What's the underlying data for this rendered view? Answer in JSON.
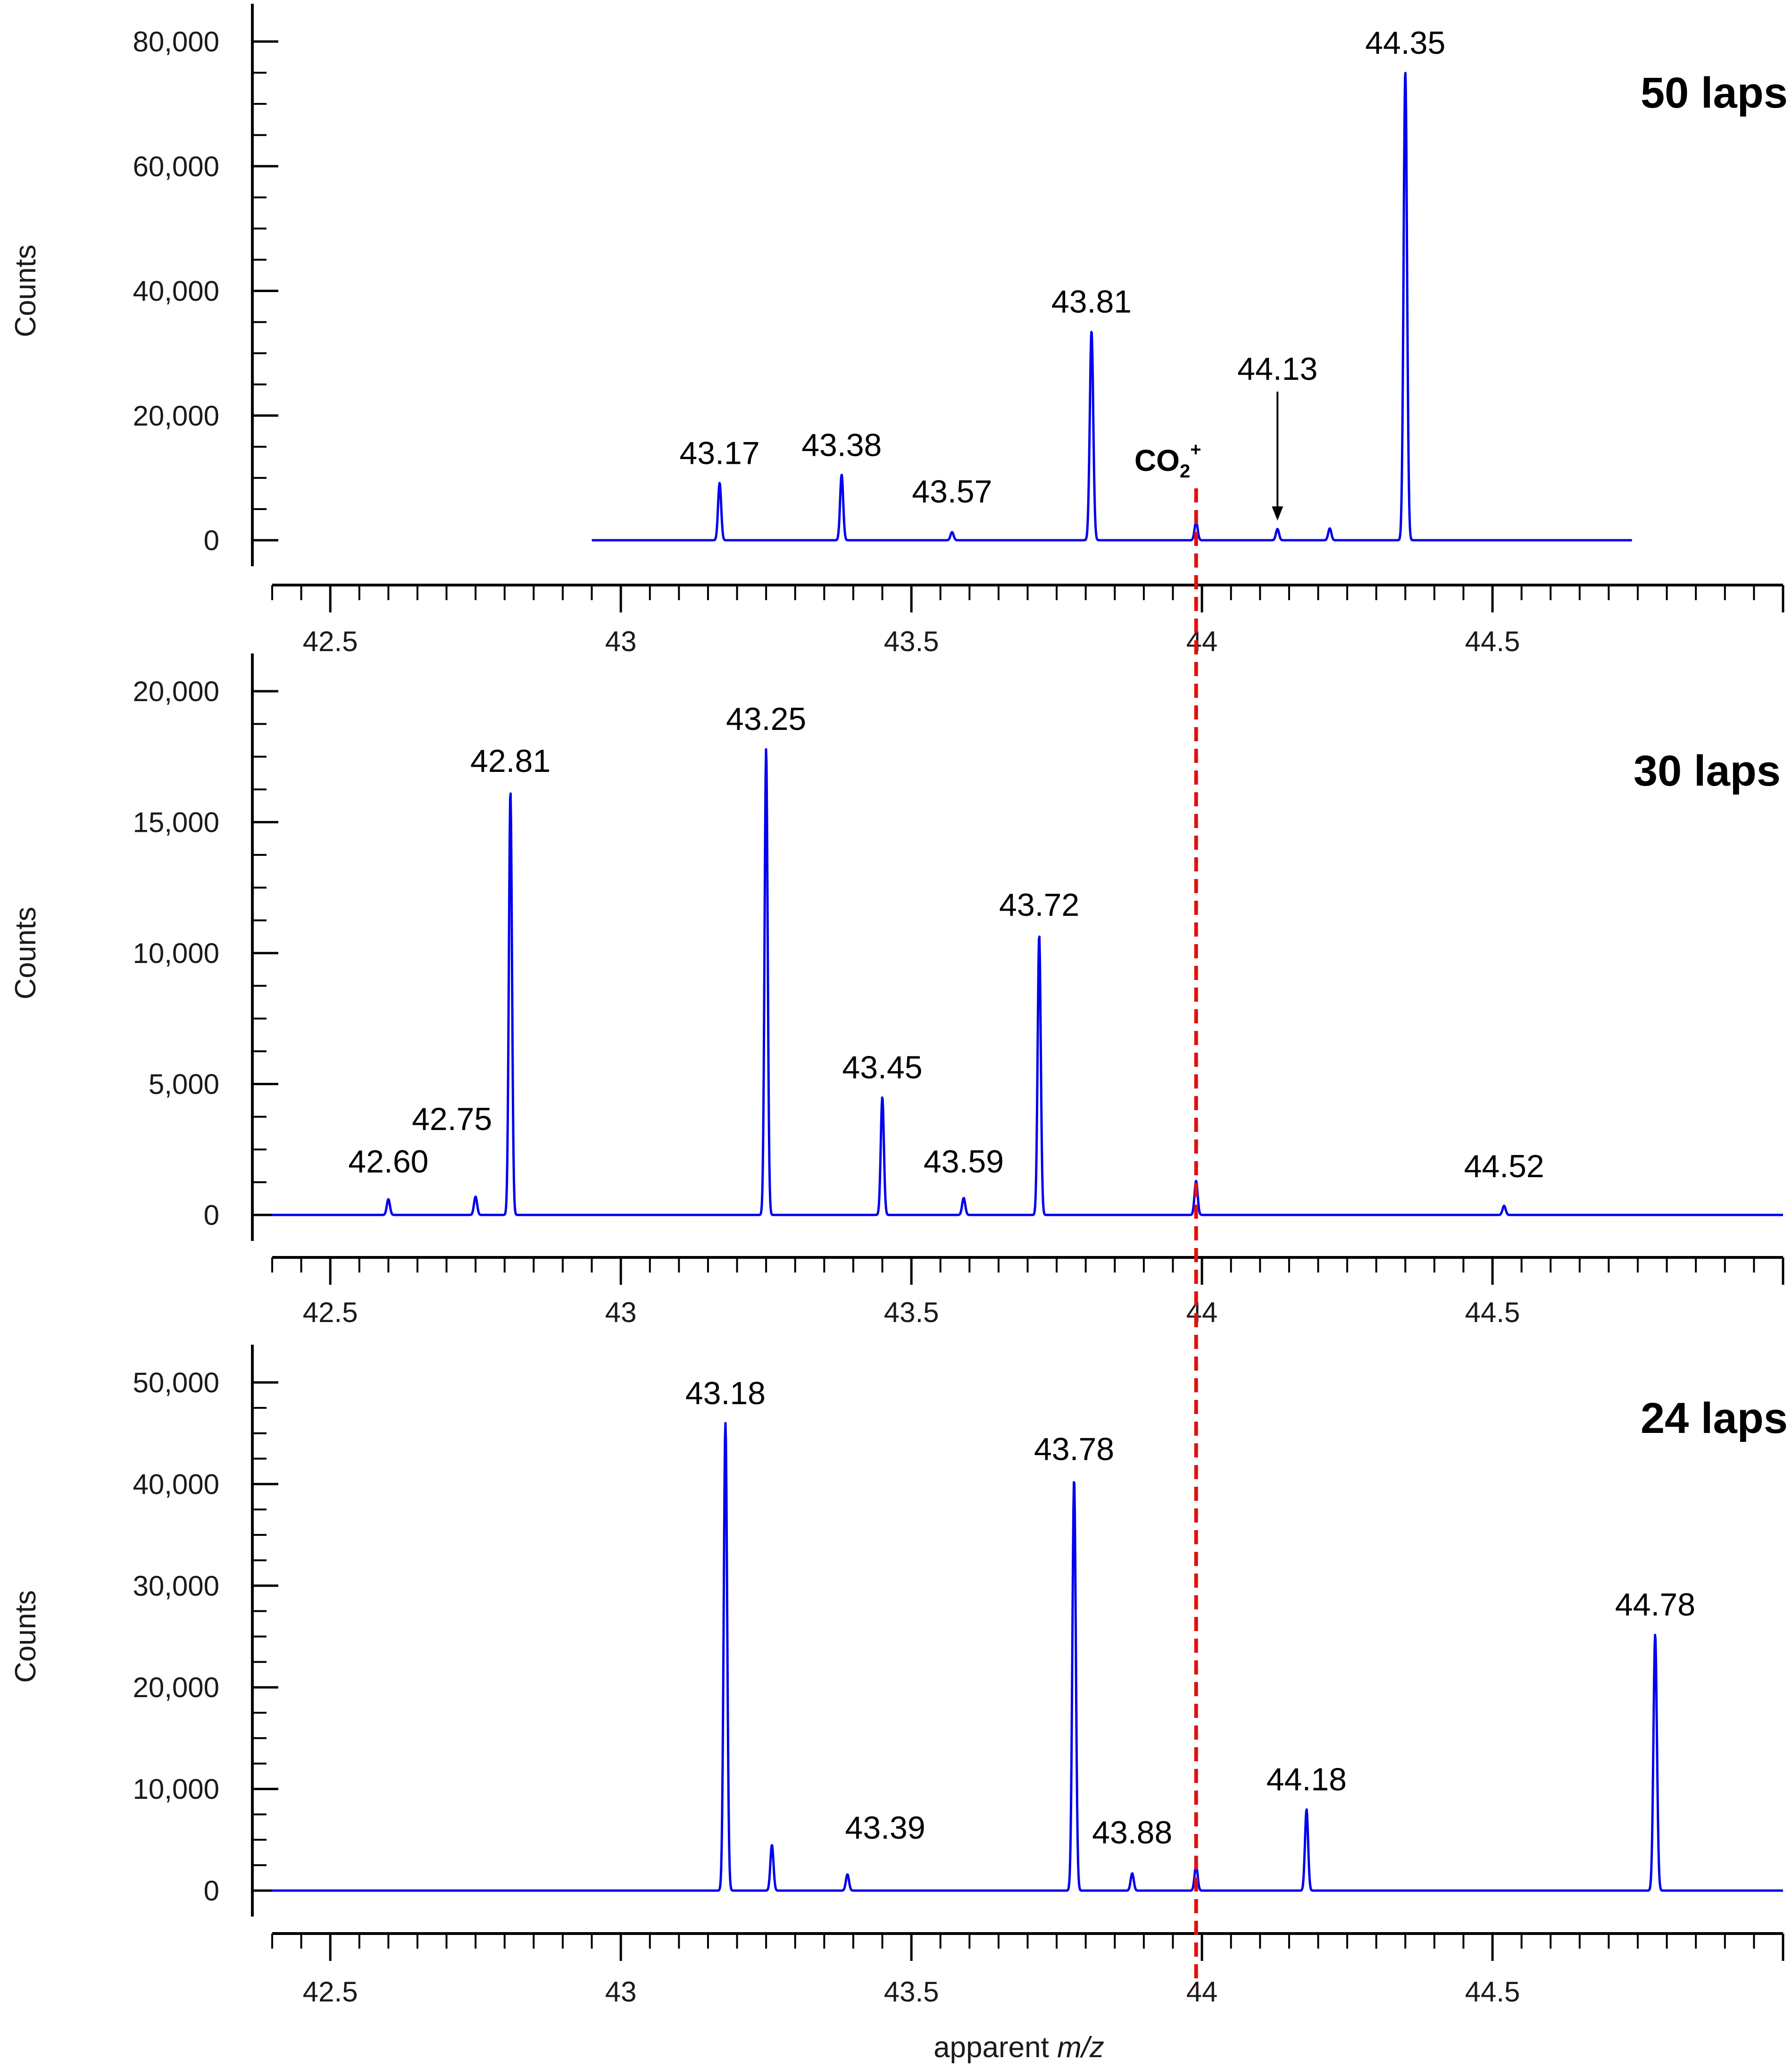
{
  "chart_data": [
    {
      "type": "line",
      "title": "50 laps",
      "ylabel": "Counts",
      "xlabel": "",
      "xlim": [
        42.4,
        45.0
      ],
      "ylim": [
        0,
        80000
      ],
      "yticks": [
        0,
        20000,
        40000,
        60000,
        80000
      ],
      "ytick_labels": [
        "0",
        "20,000",
        "40,000",
        "60,000",
        "80,000"
      ],
      "xticks": [
        42.5,
        43,
        43.5,
        44,
        44.5
      ],
      "xtick_labels": [
        "42.5",
        "43",
        "43.5",
        "44",
        "44.5"
      ],
      "data_range": [
        42.95,
        44.74
      ],
      "series": [
        {
          "peaks": [
            {
              "x": 43.17,
              "y": 9200,
              "label": "43.17"
            },
            {
              "x": 43.38,
              "y": 10500,
              "label": "43.38"
            },
            {
              "x": 43.57,
              "y": 1300,
              "label": "43.57"
            },
            {
              "x": 43.81,
              "y": 33500,
              "label": "43.81"
            },
            {
              "x": 43.99,
              "y": 3000,
              "label": ""
            },
            {
              "x": 44.13,
              "y": 1800,
              "label": "44.13"
            },
            {
              "x": 44.22,
              "y": 1900,
              "label": ""
            },
            {
              "x": 44.35,
              "y": 75000,
              "label": "44.35"
            }
          ]
        }
      ],
      "annotations": [
        {
          "text_main": "CO",
          "text_sub": "2",
          "text_sup": "+",
          "x": 43.99
        }
      ]
    },
    {
      "type": "line",
      "title": "30 laps",
      "ylabel": "Counts",
      "xlabel": "",
      "xlim": [
        42.4,
        45.0
      ],
      "ylim": [
        0,
        20000
      ],
      "yticks": [
        0,
        5000,
        10000,
        15000,
        20000
      ],
      "ytick_labels": [
        "0",
        "5,000",
        "10,000",
        "15,000",
        "20,000"
      ],
      "xticks": [
        42.5,
        43,
        43.5,
        44,
        44.5
      ],
      "xtick_labels": [
        "42.5",
        "43",
        "43.5",
        "44",
        "44.5"
      ],
      "data_range": [
        42.4,
        45.0
      ],
      "series": [
        {
          "peaks": [
            {
              "x": 42.6,
              "y": 600,
              "label": "42.60"
            },
            {
              "x": 42.75,
              "y": 700,
              "label": "42.75"
            },
            {
              "x": 42.81,
              "y": 16200,
              "label": "42.81"
            },
            {
              "x": 43.25,
              "y": 17800,
              "label": "43.25"
            },
            {
              "x": 43.45,
              "y": 4500,
              "label": "43.45"
            },
            {
              "x": 43.59,
              "y": 650,
              "label": "43.59"
            },
            {
              "x": 43.72,
              "y": 10700,
              "label": "43.72"
            },
            {
              "x": 43.99,
              "y": 1300,
              "label": ""
            },
            {
              "x": 44.52,
              "y": 350,
              "label": "44.52"
            }
          ]
        }
      ]
    },
    {
      "type": "line",
      "title": "24 laps",
      "ylabel": "Counts",
      "xlabel": "apparent m/z",
      "xlim": [
        42.4,
        45.0
      ],
      "ylim": [
        0,
        50000
      ],
      "yticks": [
        0,
        10000,
        20000,
        30000,
        40000,
        50000
      ],
      "ytick_labels": [
        "0",
        "10,000",
        "20,000",
        "30,000",
        "40,000",
        "50,000"
      ],
      "xticks": [
        42.5,
        43,
        43.5,
        44,
        44.5
      ],
      "xtick_labels": [
        "42.5",
        "43",
        "43.5",
        "44",
        "44.5"
      ],
      "data_range": [
        42.4,
        45.0
      ],
      "series": [
        {
          "peaks": [
            {
              "x": 43.18,
              "y": 46000,
              "label": "43.18"
            },
            {
              "x": 43.26,
              "y": 4500,
              "label": ""
            },
            {
              "x": 43.39,
              "y": 1600,
              "label": "43.39"
            },
            {
              "x": 43.78,
              "y": 40500,
              "label": "43.78"
            },
            {
              "x": 43.88,
              "y": 1700,
              "label": "43.88"
            },
            {
              "x": 43.99,
              "y": 2500,
              "label": ""
            },
            {
              "x": 44.18,
              "y": 8000,
              "label": "44.18"
            },
            {
              "x": 44.78,
              "y": 25200,
              "label": "44.78"
            }
          ]
        }
      ]
    }
  ],
  "xlabel": {
    "prefix": "apparent ",
    "italic": "m/z"
  },
  "reference_line": {
    "x": 43.99,
    "color": "#e01010"
  },
  "colors": {
    "spectrum": "#0000ee",
    "reference": "#e01010"
  }
}
